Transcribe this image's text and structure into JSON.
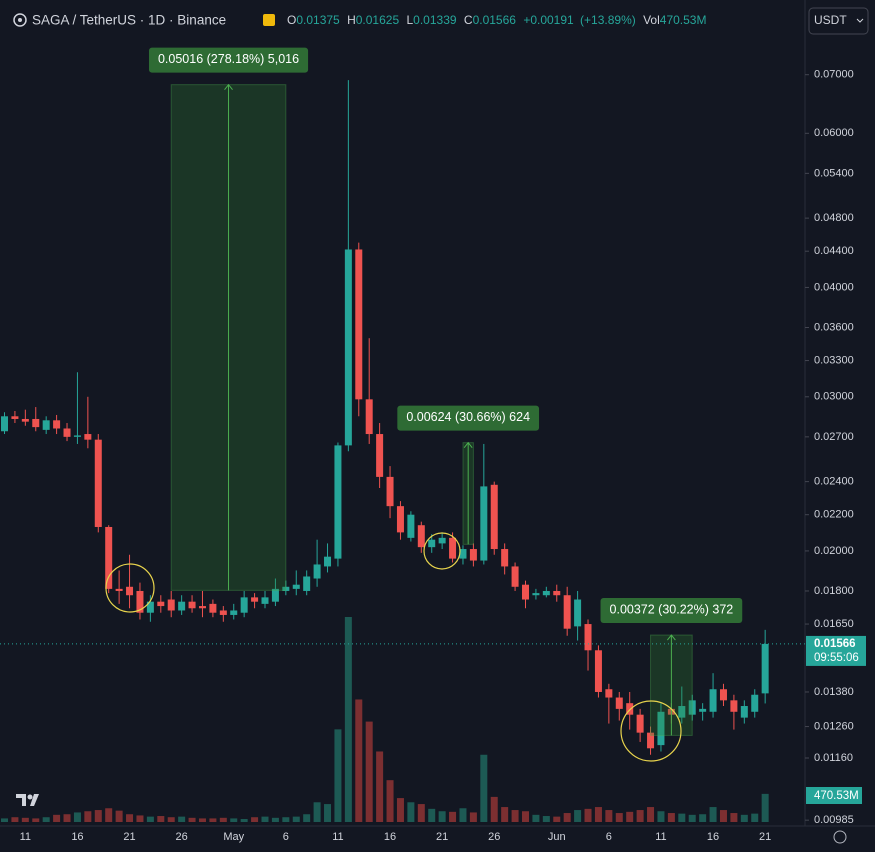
{
  "header": {
    "symbol": "SAGA / TetherUS · 1D · Binance",
    "labels": [
      "O",
      "H",
      "L",
      "C"
    ],
    "change": "+0.00191",
    "change_pct": "(+13.89%)",
    "vol_label": "Vol",
    "currency": "USDT"
  },
  "chart_data": {
    "type": "candlestick",
    "log_scale": true,
    "up_color": "#26a69a",
    "down_color": "#ef5350",
    "volume_up_color": "#1d5a54",
    "volume_down_color": "#7c2f31",
    "categories": [
      null,
      null,
      "11",
      null,
      null,
      null,
      null,
      "16",
      null,
      null,
      null,
      null,
      "21",
      null,
      null,
      null,
      null,
      "26",
      null,
      null,
      null,
      null,
      "May",
      null,
      null,
      null,
      null,
      "6",
      null,
      null,
      null,
      null,
      "11",
      null,
      null,
      null,
      null,
      "16",
      null,
      null,
      null,
      null,
      "21",
      null,
      null,
      null,
      null,
      "26",
      null,
      null,
      null,
      null,
      null,
      "Jun",
      null,
      null,
      null,
      null,
      "6",
      null,
      null,
      null,
      null,
      "11",
      null,
      null,
      null,
      null,
      "16",
      null,
      null,
      null,
      null,
      "21"
    ],
    "open": [
      0.0274,
      0.0285,
      0.0283,
      0.0283,
      0.0275,
      0.0282,
      0.0276,
      0.027,
      0.0272,
      0.0268,
      0.0213,
      0.0181,
      0.0182,
      0.018,
      0.017,
      0.0175,
      0.0176,
      0.0171,
      0.0175,
      0.0173,
      0.0174,
      0.0171,
      0.0169,
      0.017,
      0.0177,
      0.0174,
      0.0175,
      0.018,
      0.0181,
      0.018,
      0.0186,
      0.0192,
      0.0196,
      0.0264,
      0.0442,
      0.0298,
      0.0272,
      0.0243,
      0.0225,
      0.0207,
      0.0214,
      0.0202,
      0.0204,
      0.0207,
      0.0196,
      0.0201,
      0.0195,
      0.0238,
      0.0201,
      0.0192,
      0.0183,
      0.0178,
      0.0178,
      0.018,
      0.0178,
      0.0164,
      0.0165,
      0.0154,
      0.0139,
      0.0136,
      0.0134,
      0.013,
      0.0124,
      0.012,
      0.0132,
      0.0129,
      0.013,
      0.0131,
      0.0131,
      0.0139,
      0.0135,
      0.0129,
      0.0131,
      0.01375
    ],
    "high": [
      0.0288,
      0.0289,
      0.029,
      0.0292,
      0.0285,
      0.0286,
      0.028,
      0.032,
      0.03,
      0.0272,
      0.0214,
      0.019,
      0.0198,
      0.0184,
      0.0178,
      0.0178,
      0.018,
      0.0178,
      0.0178,
      0.018,
      0.0176,
      0.0173,
      0.0174,
      0.018,
      0.0179,
      0.018,
      0.0186,
      0.0185,
      0.019,
      0.019,
      0.0206,
      0.0204,
      0.0266,
      0.069,
      0.045,
      0.035,
      0.028,
      0.025,
      0.0228,
      0.0222,
      0.0216,
      0.0209,
      0.021,
      0.021,
      0.0203,
      0.0204,
      0.0265,
      0.024,
      0.0204,
      0.0194,
      0.0185,
      0.0181,
      0.0182,
      0.0183,
      0.0182,
      0.018,
      0.0167,
      0.0156,
      0.0141,
      0.0138,
      0.0138,
      0.0132,
      0.0126,
      0.0134,
      0.0134,
      0.014,
      0.0137,
      0.0134,
      0.0145,
      0.0141,
      0.0137,
      0.0135,
      0.0139,
      0.01625
    ],
    "low": [
      0.0272,
      0.028,
      0.0278,
      0.0274,
      0.0272,
      0.0272,
      0.0267,
      0.0265,
      0.0262,
      0.021,
      0.0179,
      0.0174,
      0.0172,
      0.0167,
      0.0166,
      0.017,
      0.0168,
      0.0169,
      0.017,
      0.0168,
      0.0168,
      0.0166,
      0.0167,
      0.0168,
      0.0172,
      0.0172,
      0.0173,
      0.0178,
      0.0178,
      0.0178,
      0.0182,
      0.0189,
      0.0192,
      0.026,
      0.0285,
      0.0265,
      0.0236,
      0.0218,
      0.0206,
      0.0205,
      0.0199,
      0.0199,
      0.0201,
      0.0194,
      0.0193,
      0.0192,
      0.0193,
      0.0198,
      0.0188,
      0.018,
      0.0172,
      0.0176,
      0.0177,
      0.0175,
      0.016,
      0.0158,
      0.0146,
      0.0136,
      0.0127,
      0.0128,
      0.0125,
      0.0121,
      0.0117,
      0.0118,
      0.0127,
      0.0127,
      0.0128,
      0.0128,
      0.0129,
      0.0133,
      0.0125,
      0.0127,
      0.0129,
      0.01339
    ],
    "close": [
      0.0285,
      0.0283,
      0.0281,
      0.0277,
      0.0282,
      0.0276,
      0.027,
      0.0271,
      0.0268,
      0.0213,
      0.0181,
      0.018,
      0.0178,
      0.017,
      0.0175,
      0.0173,
      0.0171,
      0.0175,
      0.0172,
      0.0172,
      0.017,
      0.0169,
      0.0171,
      0.0177,
      0.0175,
      0.0177,
      0.0181,
      0.0182,
      0.0183,
      0.0187,
      0.0193,
      0.0197,
      0.0264,
      0.0442,
      0.0298,
      0.0272,
      0.0243,
      0.0225,
      0.021,
      0.022,
      0.0202,
      0.0206,
      0.0207,
      0.0196,
      0.0201,
      0.0195,
      0.0237,
      0.0201,
      0.0192,
      0.0182,
      0.0176,
      0.0179,
      0.018,
      0.0178,
      0.0163,
      0.0176,
      0.0154,
      0.0138,
      0.0136,
      0.0132,
      0.013,
      0.0124,
      0.0119,
      0.0131,
      0.013,
      0.0133,
      0.0135,
      0.0132,
      0.0139,
      0.0135,
      0.0131,
      0.0133,
      0.0137,
      0.01566
    ],
    "volume": {
      "values": [
        60,
        80,
        70,
        60,
        80,
        120,
        130,
        160,
        180,
        200,
        230,
        190,
        130,
        110,
        90,
        100,
        80,
        90,
        70,
        60,
        60,
        70,
        60,
        50,
        80,
        90,
        70,
        80,
        90,
        130,
        330,
        300,
        1550,
        3430,
        2050,
        1680,
        1180,
        700,
        400,
        330,
        300,
        220,
        180,
        170,
        230,
        160,
        1125,
        420,
        250,
        200,
        180,
        120,
        100,
        90,
        150,
        200,
        220,
        250,
        200,
        150,
        170,
        200,
        250,
        180,
        150,
        140,
        120,
        130,
        250,
        200,
        150,
        120,
        140,
        470.53
      ],
      "value_labels": [
        null,
        null,
        null,
        null,
        null,
        null,
        null,
        null,
        null,
        null,
        null,
        null,
        null,
        null,
        null,
        null,
        null,
        null,
        null,
        null,
        null,
        null,
        null,
        null,
        null,
        null,
        null,
        null,
        null,
        null,
        null,
        null,
        null,
        null,
        null,
        null,
        null,
        null,
        null,
        null,
        null,
        null,
        null,
        null,
        null,
        null,
        null,
        null,
        null,
        null,
        null,
        null,
        null,
        null,
        null,
        null,
        null,
        null,
        null,
        null,
        null,
        null,
        null,
        null,
        null,
        null,
        null,
        null,
        null,
        null,
        null,
        null,
        null,
        "470.53M"
      ]
    },
    "countdown": "09:55:06",
    "ylim": [
      0.0097,
      0.0852
    ],
    "yticks": [
      {
        "value": 0.07,
        "label": "0.07000"
      },
      {
        "value": 0.06,
        "label": "0.06000"
      },
      {
        "value": 0.054,
        "label": "0.05400"
      },
      {
        "value": 0.048,
        "label": "0.04800"
      },
      {
        "value": 0.044,
        "label": "0.04400"
      },
      {
        "value": 0.04,
        "label": "0.04000"
      },
      {
        "value": 0.036,
        "label": "0.03600"
      },
      {
        "value": 0.033,
        "label": "0.03300"
      },
      {
        "value": 0.03,
        "label": "0.03000"
      },
      {
        "value": 0.027,
        "label": "0.02700"
      },
      {
        "value": 0.024,
        "label": "0.02400"
      },
      {
        "value": 0.022,
        "label": "0.02200"
      },
      {
        "value": 0.02,
        "label": "0.02000"
      },
      {
        "value": 0.018,
        "label": "0.01800"
      },
      {
        "value": 0.0165,
        "label": "0.01650"
      },
      {
        "value": 0.0138,
        "label": "0.01380"
      },
      {
        "value": 0.0126,
        "label": "0.01260"
      },
      {
        "value": 0.0116,
        "label": "0.01160"
      },
      {
        "value": 0.00985,
        "label": "0.00985"
      }
    ],
    "measures": [
      {
        "label": "0.05016 (278.18%) 5,016",
        "start": 16,
        "end": 27,
        "from": 0.01803,
        "to": 0.06819
      },
      {
        "label": "0.00624 (30.66%) 624",
        "start": 44,
        "end": 45,
        "from": 0.02035,
        "to": 0.02659
      },
      {
        "label": "0.00372 (30.22%) 372",
        "start": 62,
        "end": 66,
        "from": 0.01231,
        "to": 0.01603
      }
    ]
  }
}
